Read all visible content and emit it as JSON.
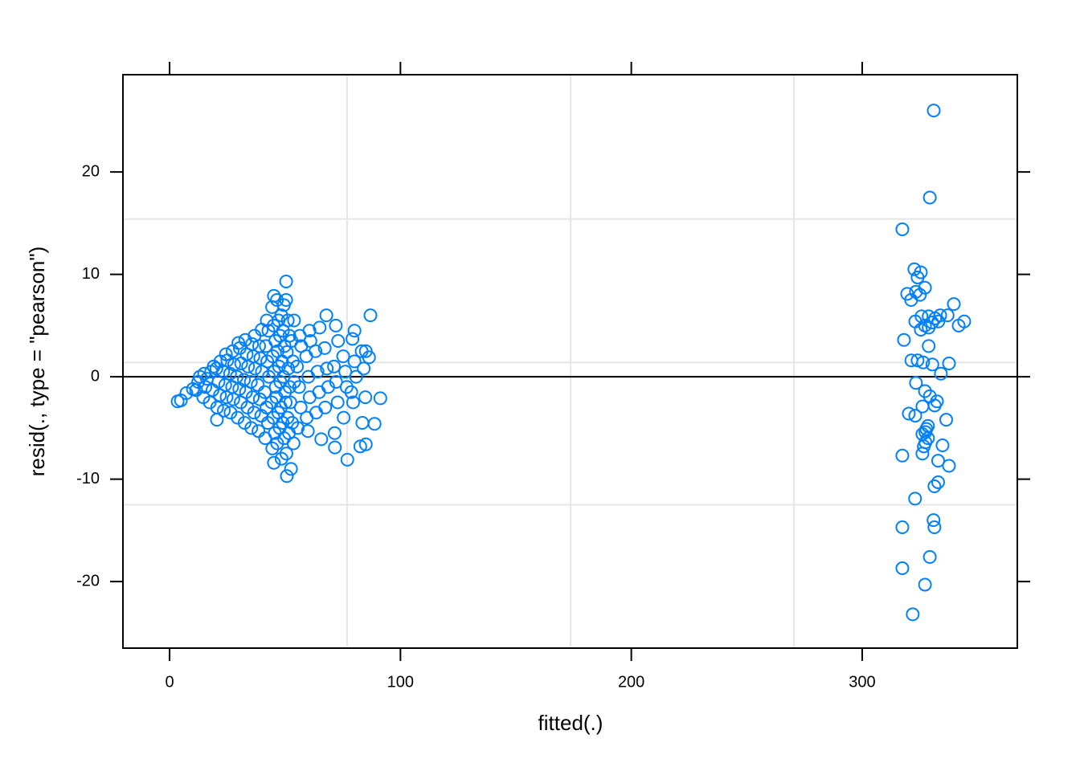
{
  "chart_data": {
    "type": "scatter",
    "x_label": "fitted(.)",
    "y_label": "resid(., type = \"pearson\")",
    "xlim": [
      -20.2,
      367.2
    ],
    "ylim": [
      -26.5,
      29.5
    ],
    "xticks": [
      0,
      100,
      200,
      300
    ],
    "yticks": [
      -20,
      -10,
      0,
      10,
      20
    ],
    "xgrid": [
      76.9,
      173.7,
      270.4
    ],
    "ygrid": [
      15.4,
      1.4,
      -12.5
    ],
    "hline": 0,
    "color": "#0080ff",
    "x": [
      11.5,
      12.4,
      13.1,
      14.6,
      15.5,
      15.0,
      16.2,
      17.4,
      18.6,
      18.0,
      19.1,
      20.6,
      21.8,
      21.2,
      20.3,
      22.0,
      23.5,
      24.7,
      24.1,
      23.2,
      25.0,
      24.4,
      26.4,
      27.6,
      27.1,
      26.2,
      28.0,
      27.3,
      29.5,
      30.8,
      30.2,
      29.1,
      31.0,
      30.4,
      29.8,
      32.5,
      33.7,
      33.1,
      32.2,
      34.0,
      33.4,
      32.8,
      35.4,
      36.6,
      36.0,
      35.2,
      37.0,
      36.3,
      35.7,
      36.8,
      38.5,
      39.7,
      39.1,
      38.2,
      40.0,
      39.3,
      38.8,
      39.9,
      41.4,
      42.6,
      42.0,
      41.2,
      43.0,
      42.3,
      41.7,
      42.8,
      42.1,
      44.5,
      45.6,
      45.0,
      44.2,
      46.0,
      45.3,
      44.7,
      45.8,
      45.1,
      44.4,
      46.6,
      47.7,
      47.1,
      46.3,
      48.0,
      47.4,
      46.8,
      47.9,
      47.2,
      46.5,
      48.5,
      49.6,
      49.0,
      48.2,
      50.0,
      49.3,
      48.7,
      49.8,
      49.1,
      48.4,
      49.5,
      50.6,
      51.7,
      51.1,
      50.3,
      52.0,
      51.4,
      50.8,
      51.9,
      51.2,
      50.5,
      52.6,
      53.7,
      53.1,
      52.3,
      54.0,
      53.4,
      52.8,
      53.9,
      55.5,
      56.8,
      56.1,
      55.2,
      57.0,
      56.4,
      59.4,
      60.7,
      60.1,
      59.2,
      61.0,
      63.5,
      64.8,
      64.1,
      63.2,
      65.0,
      67.4,
      68.7,
      68.1,
      67.2,
      71.5,
      72.8,
      72.1,
      71.2,
      73.0,
      75.4,
      76.7,
      76.1,
      75.2,
      79.5,
      80.8,
      80.1,
      79.2,
      83.5,
      84.8,
      84.1,
      83.2,
      3.5,
      4.9,
      7.3,
      10.1,
      20.5,
      50.5,
      45.2,
      67.9,
      87,
      72,
      50.8,
      45.2,
      77,
      71.6,
      65.7,
      88.8,
      91.3,
      85,
      82.6,
      80.1,
      85,
      86.4,
      60.6,
      59.9,
      78.7,
      331,
      329.3,
      317.4,
      322.6,
      325.4,
      324,
      327.2,
      323.3,
      319.5,
      325,
      321.2,
      339.7,
      337,
      333.8,
      325.7,
      328.8,
      331.6,
      333,
      344.2,
      323,
      330.3,
      327.2,
      341.8,
      325.4,
      328.8,
      318.1,
      328.8,
      321.3,
      324,
      337.6,
      330.4,
      326.4,
      334.1,
      323.3,
      327.2,
      329.3,
      332.4,
      331.4,
      326.1,
      320.2,
      323,
      336.4,
      328.5,
      327.8,
      327.4,
      326.1,
      328.5,
      327.4,
      326.7,
      334.8,
      326.1,
      317.4,
      332.9,
      337.6,
      332.9,
      331.3,
      322.9,
      330.9,
      331.3,
      317.4,
      329.3,
      317.4,
      327.2,
      321.9
    ],
    "values": [
      -1.3,
      -0.5,
      0.0,
      -2.0,
      -1.0,
      0.3,
      -0.2,
      -2.5,
      -1.3,
      0.5,
      1.0,
      -3.0,
      -1.8,
      -0.5,
      0.8,
      1.5,
      -3.3,
      -2.0,
      -0.8,
      0.5,
      1.6,
      2.2,
      -3.5,
      -2.2,
      -1.0,
      0.3,
      1.2,
      2.5,
      -4.0,
      -2.5,
      -1.2,
      0,
      1.3,
      2.8,
      3.3,
      -4.5,
      -3.0,
      -1.5,
      -0.3,
      1.0,
      2.2,
      3.6,
      -5.0,
      -3.5,
      -2.0,
      -0.5,
      0.8,
      2.0,
      3.2,
      4.0,
      -5.3,
      -3.8,
      -2.2,
      -0.8,
      0.5,
      1.8,
      3.0,
      4.6,
      -6.0,
      -4.5,
      -3.0,
      -1.5,
      0,
      1.5,
      3.0,
      4.5,
      5.5,
      -7.0,
      -5.5,
      -4.0,
      -2.5,
      -1.0,
      0.5,
      2.0,
      3.5,
      5.0,
      6.8,
      -6.5,
      -5.0,
      -3.5,
      -2.0,
      -0.5,
      1.0,
      2.5,
      4.0,
      5.5,
      7.5,
      -8.0,
      -6.0,
      -4.5,
      -3.0,
      -1.5,
      0,
      1.5,
      3.0,
      4.5,
      6.0,
      7.0,
      -7.5,
      -5.5,
      -4.0,
      -2.5,
      -1.0,
      0.8,
      2.4,
      4.0,
      5.5,
      7.5,
      -9.0,
      -6.5,
      -4.5,
      -2.5,
      -0.5,
      1.5,
      3.5,
      5.5,
      -5.0,
      -3.0,
      -1.0,
      1.0,
      3.0,
      4.0,
      -4.0,
      -2.0,
      0.0,
      2.0,
      3.5,
      -3.5,
      -1.5,
      0.5,
      2.5,
      4.8,
      -3.0,
      -1.0,
      0.8,
      2.8,
      -5.5,
      -2.5,
      -0.5,
      1.0,
      3.5,
      -4.0,
      -1.0,
      0.5,
      2.0,
      -2.5,
      0.0,
      1.5,
      3.7,
      -4.5,
      -2.0,
      0.8,
      2.5,
      -2.4,
      -2.3,
      -1.6,
      -1.2,
      -4.2,
      9.3,
      7.9,
      6.0,
      6.0,
      5.0,
      -9.7,
      -8.4,
      -8.1,
      -6.9,
      -6.1,
      -4.6,
      -2.1,
      -6.6,
      -6.8,
      4.5,
      2.5,
      1.9,
      4.5,
      -5.3,
      -1.5,
      26.0,
      17.5,
      14.4,
      10.5,
      10.2,
      9.7,
      8.7,
      8.3,
      8.1,
      8.0,
      7.5,
      7.1,
      6.0,
      6.0,
      5.9,
      5.9,
      5.7,
      5.4,
      5.4,
      5.4,
      5.3,
      5.0,
      5.0,
      4.6,
      4.8,
      3.6,
      3.0,
      1.6,
      1.6,
      1.3,
      1.2,
      1.4,
      0.3,
      -0.6,
      -1.4,
      -1.9,
      -2.4,
      -2.8,
      -2.9,
      -3.6,
      -3.8,
      -4.2,
      -4.8,
      -5.1,
      -5.4,
      -5.6,
      -6.0,
      -6.4,
      -6.8,
      -6.7,
      -7.5,
      -7.7,
      -8.2,
      -8.7,
      -10.3,
      -10.7,
      -11.9,
      -14.0,
      -14.7,
      -14.7,
      -17.6,
      -18.7,
      -20.3,
      -23.2
    ]
  }
}
